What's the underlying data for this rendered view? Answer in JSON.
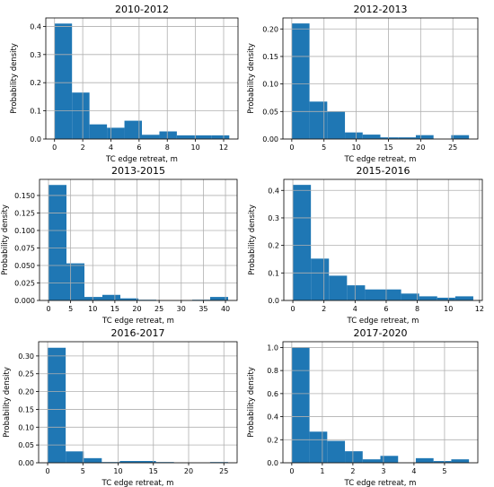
{
  "chart_data": [
    {
      "type": "bar",
      "title": "2010-2012",
      "xlabel": "TC edge retreat, m",
      "ylabel": "Probability density",
      "bin_edges": [
        0,
        1.24,
        2.48,
        3.72,
        4.96,
        6.2,
        7.44,
        8.68,
        9.92,
        11.16,
        12.4
      ],
      "values": [
        0.41,
        0.165,
        0.052,
        0.04,
        0.065,
        0.015,
        0.027,
        0.013,
        0.013,
        0.013
      ],
      "xlim": [
        -0.62,
        13.02
      ],
      "ylim": [
        0,
        0.43
      ],
      "xticks": [
        0,
        2,
        4,
        6,
        8,
        10,
        12
      ],
      "yticks": [
        0.0,
        0.1,
        0.2,
        0.3,
        0.4
      ],
      "xtick_labels": [
        "0",
        "2",
        "4",
        "6",
        "8",
        "10",
        "12"
      ],
      "ytick_labels": [
        "0.0",
        "0.1",
        "0.2",
        "0.3",
        "0.4"
      ],
      "grid": true,
      "bar_color": "#1f77b4"
    },
    {
      "type": "bar",
      "title": "2012-2013",
      "xlabel": "TC edge retreat, m",
      "ylabel": "Probability density",
      "bin_edges": [
        0,
        2.75,
        5.5,
        8.25,
        11,
        13.75,
        16.5,
        19.25,
        22,
        24.75,
        27.5
      ],
      "values": [
        0.21,
        0.068,
        0.05,
        0.012,
        0.008,
        0.003,
        0.003,
        0.007,
        0.0,
        0.007
      ],
      "xlim": [
        -1.375,
        28.875
      ],
      "ylim": [
        0,
        0.22
      ],
      "xticks": [
        0,
        5,
        10,
        15,
        20,
        25
      ],
      "yticks": [
        0.0,
        0.05,
        0.1,
        0.15,
        0.2
      ],
      "xtick_labels": [
        "0",
        "5",
        "10",
        "15",
        "20",
        "25"
      ],
      "ytick_labels": [
        "0.00",
        "0.05",
        "0.10",
        "0.15",
        "0.20"
      ],
      "grid": true,
      "bar_color": "#1f77b4"
    },
    {
      "type": "bar",
      "title": "2013-2015",
      "xlabel": "TC edge retreat, m",
      "ylabel": "Probability density",
      "bin_edges": [
        0,
        4.06,
        8.12,
        12.18,
        16.24,
        20.3,
        24.36,
        28.42,
        32.48,
        36.54,
        40.6
      ],
      "values": [
        0.165,
        0.053,
        0.005,
        0.008,
        0.003,
        0.001,
        0.0,
        0.0,
        0.001,
        0.005
      ],
      "xlim": [
        -2.03,
        42.63
      ],
      "ylim": [
        0,
        0.173
      ],
      "xticks": [
        0,
        5,
        10,
        15,
        20,
        25,
        30,
        35,
        40
      ],
      "yticks": [
        0.0,
        0.025,
        0.05,
        0.075,
        0.1,
        0.125,
        0.15
      ],
      "xtick_labels": [
        "0",
        "5",
        "10",
        "15",
        "20",
        "25",
        "30",
        "35",
        "40"
      ],
      "ytick_labels": [
        "0.000",
        "0.025",
        "0.050",
        "0.075",
        "0.100",
        "0.125",
        "0.150"
      ],
      "grid": true,
      "bar_color": "#1f77b4"
    },
    {
      "type": "bar",
      "title": "2015-2016",
      "xlabel": "TC edge retreat, m",
      "ylabel": "Probability density",
      "bin_edges": [
        0,
        1.16,
        2.32,
        3.48,
        4.64,
        5.8,
        6.96,
        8.12,
        9.28,
        10.44,
        11.6
      ],
      "values": [
        0.42,
        0.152,
        0.09,
        0.055,
        0.04,
        0.04,
        0.025,
        0.015,
        0.01,
        0.015
      ],
      "xlim": [
        -0.58,
        12.18
      ],
      "ylim": [
        0,
        0.44
      ],
      "xticks": [
        0,
        2,
        4,
        6,
        8,
        10,
        12
      ],
      "yticks": [
        0.0,
        0.1,
        0.2,
        0.3,
        0.4
      ],
      "xtick_labels": [
        "0",
        "2",
        "4",
        "6",
        "8",
        "10",
        "12"
      ],
      "ytick_labels": [
        "0.0",
        "0.1",
        "0.2",
        "0.3",
        "0.4"
      ],
      "grid": true,
      "bar_color": "#1f77b4"
    },
    {
      "type": "bar",
      "title": "2016-2017",
      "xlabel": "TC edge retreat, m",
      "ylabel": "Probability density",
      "bin_edges": [
        0,
        2.56,
        5.12,
        7.68,
        10.24,
        12.8,
        15.36,
        17.92,
        20.48,
        23.04,
        25.6
      ],
      "values": [
        0.323,
        0.032,
        0.013,
        0.002,
        0.005,
        0.005,
        0.002,
        0.0,
        0.0,
        0.002
      ],
      "xlim": [
        -1.28,
        26.88
      ],
      "ylim": [
        0,
        0.34
      ],
      "xticks": [
        0,
        5,
        10,
        15,
        20,
        25
      ],
      "yticks": [
        0.0,
        0.05,
        0.1,
        0.15,
        0.2,
        0.25,
        0.3
      ],
      "xtick_labels": [
        "0",
        "5",
        "10",
        "15",
        "20",
        "25"
      ],
      "ytick_labels": [
        "0.00",
        "0.05",
        "0.10",
        "0.15",
        "0.20",
        "0.25",
        "0.30"
      ],
      "grid": true,
      "bar_color": "#1f77b4"
    },
    {
      "type": "bar",
      "title": "2017-2020",
      "xlabel": "TC edge retreat, m",
      "ylabel": "Probability density",
      "bin_edges": [
        0,
        0.58,
        1.16,
        1.74,
        2.32,
        2.9,
        3.48,
        4.06,
        4.64,
        5.22,
        5.8
      ],
      "values": [
        1.0,
        0.27,
        0.19,
        0.1,
        0.03,
        0.06,
        0.0,
        0.04,
        0.015,
        0.03
      ],
      "xlim": [
        -0.29,
        6.09
      ],
      "ylim": [
        0,
        1.05
      ],
      "xticks": [
        0,
        1,
        2,
        3,
        4,
        5
      ],
      "yticks": [
        0.0,
        0.2,
        0.4,
        0.6,
        0.8,
        1.0
      ],
      "xtick_labels": [
        "0",
        "1",
        "2",
        "3",
        "4",
        "5"
      ],
      "ytick_labels": [
        "0.0",
        "0.2",
        "0.4",
        "0.6",
        "0.8",
        "1.0"
      ],
      "grid": true,
      "bar_color": "#1f77b4"
    }
  ]
}
